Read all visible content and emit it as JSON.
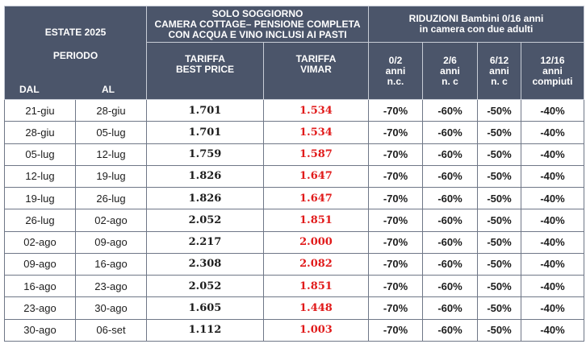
{
  "header": {
    "season": "ESTATE 2025",
    "period": "PERIODO",
    "from": "DAL",
    "to": "AL",
    "stay_lines": [
      "SOLO SOGGIORNO",
      "CAMERA COTTAGE– PENSIONE COMPLETA",
      "CON ACQUA E VINO INCLUSI AI PASTI"
    ],
    "reductions_lines": [
      "RIDUZIONI Bambini 0/16 anni",
      "in camera con due adulti"
    ],
    "best_price_lines": [
      "TARIFFA",
      "BEST PRICE"
    ],
    "vimar_lines": [
      "TARIFFA",
      "VIMAR"
    ],
    "age_bands": [
      {
        "lines": [
          "0/2",
          "anni",
          "n.c."
        ]
      },
      {
        "lines": [
          "2/6",
          "anni",
          "n. c"
        ]
      },
      {
        "lines": [
          "6/12",
          "anni",
          "n. c"
        ]
      },
      {
        "lines": [
          "12/16",
          "anni",
          "compiuti"
        ]
      }
    ]
  },
  "rows": [
    {
      "from": "21-giu",
      "to": "28-giu",
      "best": "1.701",
      "vimar": "1.534",
      "r1": "-70%",
      "r2": "-60%",
      "r3": "-50%",
      "r4": "-40%"
    },
    {
      "from": "28-giu",
      "to": "05-lug",
      "best": "1.701",
      "vimar": "1.534",
      "r1": "-70%",
      "r2": "-60%",
      "r3": "-50%",
      "r4": "-40%"
    },
    {
      "from": "05-lug",
      "to": "12-lug",
      "best": "1.759",
      "vimar": "1.587",
      "r1": "-70%",
      "r2": "-60%",
      "r3": "-50%",
      "r4": "-40%"
    },
    {
      "from": "12-lug",
      "to": "19-lug",
      "best": "1.826",
      "vimar": "1.647",
      "r1": "-70%",
      "r2": "-60%",
      "r3": "-50%",
      "r4": "-40%"
    },
    {
      "from": "19-lug",
      "to": "26-lug",
      "best": "1.826",
      "vimar": "1.647",
      "r1": "-70%",
      "r2": "-60%",
      "r3": "-50%",
      "r4": "-40%"
    },
    {
      "from": "26-lug",
      "to": "02-ago",
      "best": "2.052",
      "vimar": "1.851",
      "r1": "-70%",
      "r2": "-60%",
      "r3": "-50%",
      "r4": "-40%"
    },
    {
      "from": "02-ago",
      "to": "09-ago",
      "best": "2.217",
      "vimar": "2.000",
      "r1": "-70%",
      "r2": "-60%",
      "r3": "-50%",
      "r4": "-40%"
    },
    {
      "from": "09-ago",
      "to": "16-ago",
      "best": "2.308",
      "vimar": "2.082",
      "r1": "-70%",
      "r2": "-60%",
      "r3": "-50%",
      "r4": "-40%"
    },
    {
      "from": "16-ago",
      "to": "23-ago",
      "best": "2.052",
      "vimar": "1.851",
      "r1": "-70%",
      "r2": "-60%",
      "r3": "-50%",
      "r4": "-40%"
    },
    {
      "from": "23-ago",
      "to": "30-ago",
      "best": "1.605",
      "vimar": "1.448",
      "r1": "-70%",
      "r2": "-60%",
      "r3": "-50%",
      "r4": "-40%"
    },
    {
      "from": "30-ago",
      "to": "06-set",
      "best": "1.112",
      "vimar": "1.003",
      "r1": "-70%",
      "r2": "-60%",
      "r3": "-50%",
      "r4": "-40%"
    }
  ],
  "colors": {
    "header_bg": "#4b556a",
    "header_text": "#ffffff",
    "vimar_price": "#e11b1b",
    "grid": "#6f8cc0"
  }
}
